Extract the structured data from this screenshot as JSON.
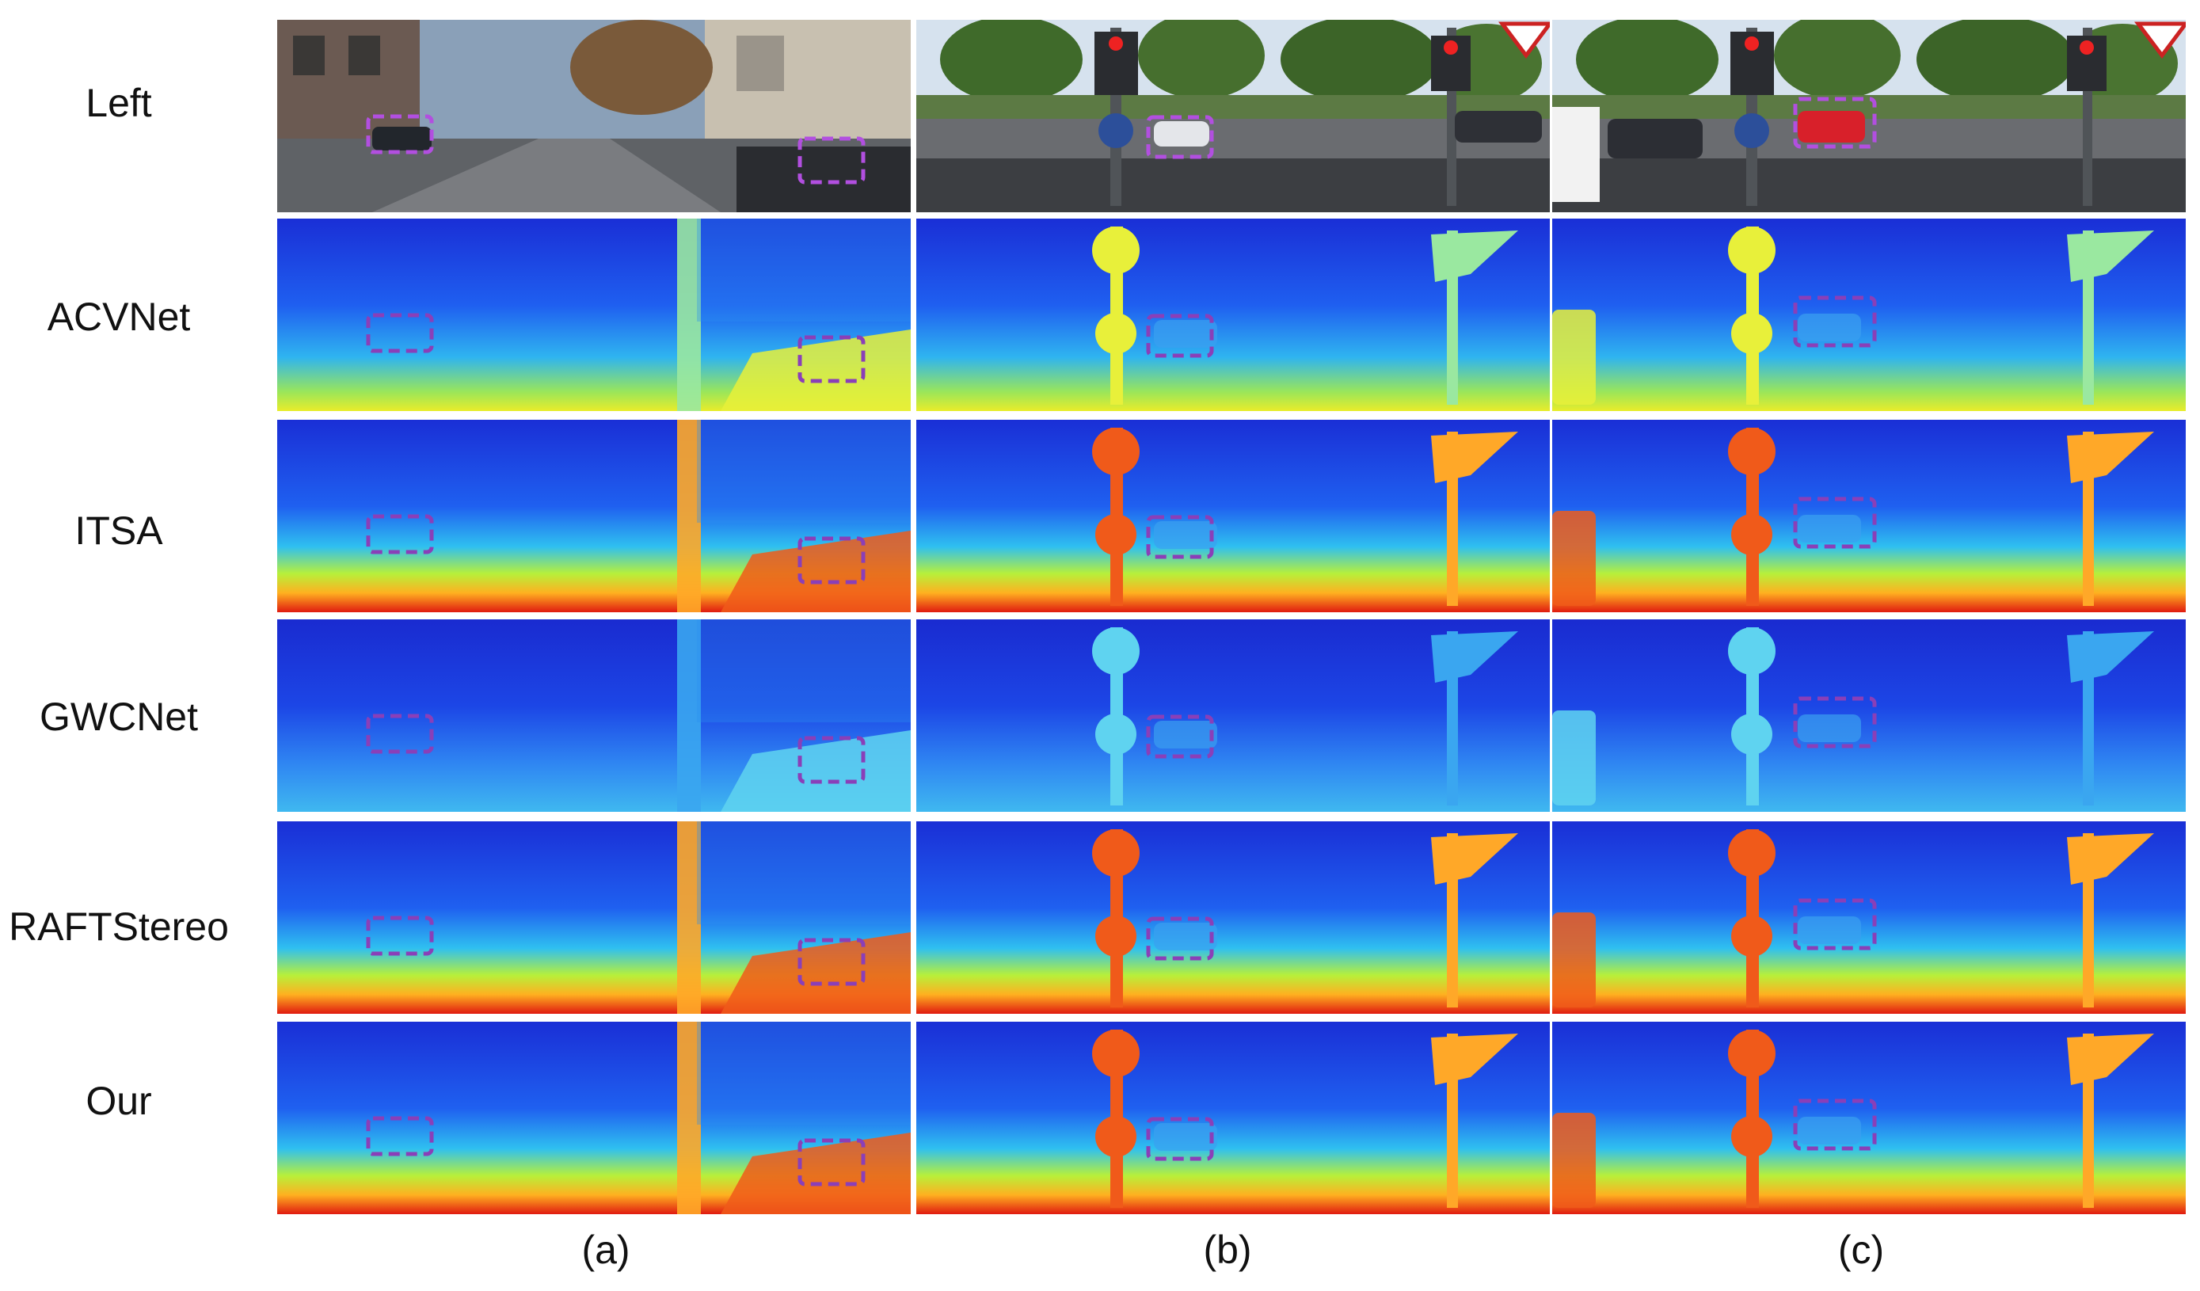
{
  "rows": [
    {
      "label": "Left",
      "kind": "photo"
    },
    {
      "label": "ACVNet",
      "kind": "disparity",
      "level": "low"
    },
    {
      "label": "ITSA",
      "kind": "disparity",
      "level": "high"
    },
    {
      "label": "GWCNet",
      "kind": "disparity",
      "level": "verylow"
    },
    {
      "label": "RAFTStereo",
      "kind": "disparity",
      "level": "high"
    },
    {
      "label": "Our",
      "kind": "disparity",
      "level": "high"
    }
  ],
  "columns": [
    {
      "label": "(a)",
      "scene": "street"
    },
    {
      "label": "(b)",
      "scene": "crossing"
    },
    {
      "label": "(c)",
      "scene": "crossing-red-car"
    }
  ],
  "colors": {
    "highlight_box_dash": "#8a3fb8",
    "disparity_far": "#1a2fd6",
    "disparity_near": "#e01a10"
  }
}
